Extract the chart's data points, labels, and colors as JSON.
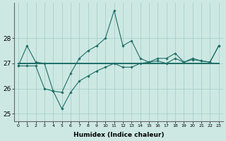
{
  "xlabel": "Humidex (Indice chaleur)",
  "ylabel": "",
  "bg_color": "#cde8e3",
  "grid_color": "#a8cfc8",
  "line_color": "#1e6e66",
  "x": [
    0,
    1,
    2,
    3,
    4,
    5,
    6,
    7,
    8,
    9,
    10,
    11,
    12,
    13,
    14,
    15,
    16,
    17,
    18,
    19,
    20,
    21,
    22,
    23
  ],
  "series1": [
    26.9,
    27.7,
    27.05,
    27.0,
    25.9,
    25.85,
    26.6,
    27.2,
    27.5,
    27.7,
    28.0,
    29.1,
    27.7,
    27.9,
    27.2,
    27.05,
    27.2,
    27.2,
    27.4,
    27.05,
    27.2,
    27.1,
    27.05,
    27.7
  ],
  "series2": [
    27.0,
    27.0,
    27.0,
    27.0,
    27.0,
    27.0,
    27.0,
    27.0,
    27.0,
    27.0,
    27.0,
    27.0,
    27.0,
    27.0,
    27.0,
    27.0,
    27.0,
    27.0,
    27.0,
    27.0,
    27.0,
    27.0,
    27.0,
    27.0
  ],
  "series3": [
    26.9,
    26.9,
    26.9,
    26.0,
    25.9,
    25.2,
    25.85,
    26.3,
    26.5,
    26.7,
    26.85,
    27.0,
    26.85,
    26.85,
    27.0,
    27.05,
    27.1,
    27.0,
    27.2,
    27.05,
    27.15,
    27.1,
    27.05,
    27.7
  ],
  "ylim": [
    24.7,
    29.4
  ],
  "yticks": [
    25,
    26,
    27,
    28
  ],
  "xlim": [
    -0.5,
    23.5
  ]
}
